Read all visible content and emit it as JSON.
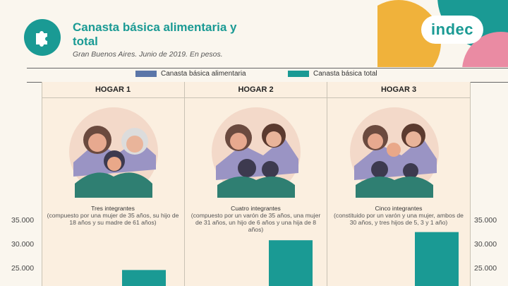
{
  "header": {
    "title": "Canasta básica alimentaria y total",
    "subtitle": "Gran Buenos Aires. Junio de 2019. En pesos.",
    "brand": "indec"
  },
  "colors": {
    "alimentaria": "#5b76a8",
    "total": "#1a9a94",
    "accent_orange": "#f0b23b",
    "accent_pink": "#ea8ba3"
  },
  "icons": [
    "puzzle-icon",
    "family-illustration"
  ],
  "households": [
    {
      "title": "HOGAR 1",
      "integrantes": "Tres integrantes",
      "detail": "(compuesto por una mujer de 35 años, su hijo de 18 años y su madre de 61 años)"
    },
    {
      "title": "HOGAR 2",
      "integrantes": "Cuatro integrantes",
      "detail": "(compuesto por un varón de 35 años, una mujer de 31 años, un hijo de 6 años y una hija de 8 años)"
    },
    {
      "title": "HOGAR 3",
      "integrantes": "Cinco integrantes",
      "detail": "(constituido por un varón y una mujer, ambos de 30 años, y tres hijos de 5, 3 y 1 año)"
    }
  ],
  "chart_data": {
    "type": "bar",
    "categories": [
      "HOGAR 1",
      "HOGAR 2",
      "HOGAR 3"
    ],
    "series": [
      {
        "name": "Canasta básica alimentaria",
        "values": [
          null,
          null,
          null
        ]
      },
      {
        "name": "Canasta básica total",
        "values": [
          24800,
          31000,
          32700
        ]
      }
    ],
    "y_ticks": [
      "35.000",
      "30.000",
      "25.000"
    ],
    "y_tick_values": [
      35000,
      30000,
      25000
    ],
    "ylim_visible": [
      22000,
      35000
    ],
    "legend_position": "top-center",
    "grid": false
  }
}
